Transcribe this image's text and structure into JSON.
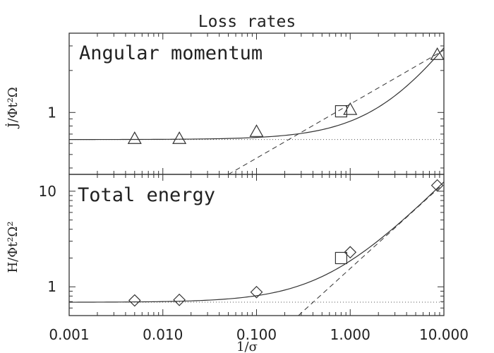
{
  "title": "Loss rates",
  "chart_data": [
    {
      "type": "scatter",
      "panel": "top",
      "title": "Angular momentum",
      "ylabel": "J̇/Φt²Ω",
      "xscale": "log",
      "yscale": "log",
      "xlim": [
        0.001,
        10.0
      ],
      "ylim": [
        0.36,
        3.7
      ],
      "yticks": [
        {
          "value": 1,
          "label": "1"
        }
      ],
      "grid": false,
      "series": [
        {
          "marker": "triangle",
          "x": [
            0.005,
            0.015,
            0.1,
            1.0,
            8.5
          ],
          "y": [
            0.65,
            0.65,
            0.73,
            1.05,
            2.6
          ]
        },
        {
          "marker": "square",
          "x": [
            0.8
          ],
          "y": [
            1.02
          ]
        }
      ],
      "curves": {
        "solid_fit": {
          "x0": 0.001,
          "x1": 10.0,
          "y0": 0.64,
          "y1": 2.9
        },
        "dashed_asymptote": {
          "x0": 0.05,
          "x1": 10.0,
          "y0": 0.36,
          "y1": 2.8
        },
        "dotted_baseline": {
          "y": 0.64
        }
      }
    },
    {
      "type": "scatter",
      "panel": "bottom",
      "title": "Total energy",
      "ylabel": "H/Φt²Ω²",
      "xlabel": "1/σ",
      "xscale": "log",
      "yscale": "log",
      "xlim": [
        0.001,
        10.0
      ],
      "ylim": [
        0.5,
        15
      ],
      "xticks": [
        {
          "value": 0.001,
          "label": "0.001"
        },
        {
          "value": 0.01,
          "label": "0.010"
        },
        {
          "value": 0.1,
          "label": "0.100"
        },
        {
          "value": 1.0,
          "label": "1.000"
        },
        {
          "value": 10.0,
          "label": "10.000"
        }
      ],
      "yticks": [
        {
          "value": 1,
          "label": "1"
        },
        {
          "value": 10,
          "label": "10"
        }
      ],
      "grid": false,
      "series": [
        {
          "marker": "diamond",
          "x": [
            0.005,
            0.015,
            0.1,
            1.0,
            8.5
          ],
          "y": [
            0.72,
            0.73,
            0.88,
            2.3,
            11.5
          ]
        },
        {
          "marker": "square",
          "x": [
            0.8
          ],
          "y": [
            2.0
          ]
        }
      ],
      "curves": {
        "solid_fit": {
          "x0": 0.001,
          "x1": 10.0,
          "y0": 0.69,
          "y1": 12.5
        },
        "dashed_asymptote": {
          "x0": 0.28,
          "x1": 9.0,
          "y0": 0.5,
          "y1": 11.0
        },
        "dotted_baseline": {
          "y": 0.69
        }
      }
    }
  ]
}
